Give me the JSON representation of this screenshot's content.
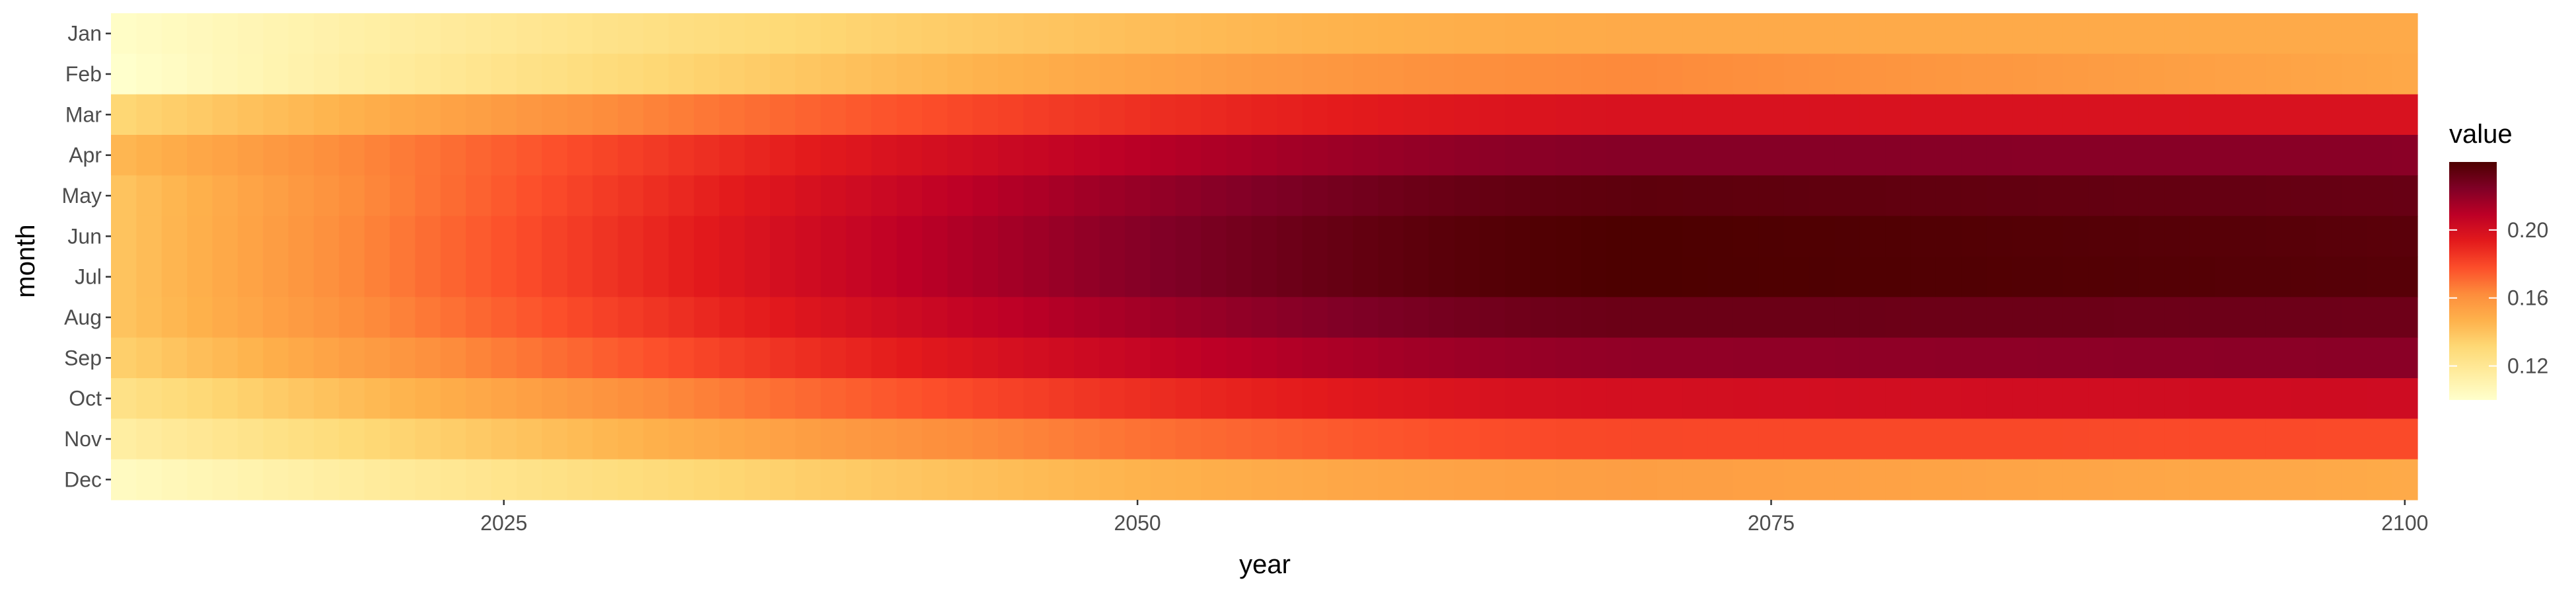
{
  "chart_data": {
    "type": "heatmap",
    "title": "",
    "xlabel": "year",
    "ylabel": "month",
    "x_start": 2010,
    "x_end": 2100,
    "x_ticks": [
      2025,
      2050,
      2075,
      2100
    ],
    "x_tick_labels": [
      "2025",
      "2050",
      "2075",
      "2100"
    ],
    "months": [
      "Jan",
      "Feb",
      "Mar",
      "Apr",
      "May",
      "Jun",
      "Jul",
      "Aug",
      "Sep",
      "Oct",
      "Nov",
      "Dec"
    ],
    "peak_year": 2070,
    "month_peak_values": [
      0.15,
      0.163,
      0.198,
      0.223,
      0.235,
      0.24,
      0.24,
      0.231,
      0.22,
      0.2,
      0.18,
      0.155
    ],
    "month_start_values": [
      0.102,
      0.1,
      0.132,
      0.145,
      0.14,
      0.14,
      0.14,
      0.14,
      0.135,
      0.125,
      0.115,
      0.104
    ],
    "month_end_values": [
      0.15,
      0.151,
      0.198,
      0.222,
      0.232,
      0.236,
      0.237,
      0.23,
      0.222,
      0.202,
      0.179,
      0.15
    ],
    "legend": {
      "title": "value",
      "position": "right",
      "ticks": [
        0.12,
        0.16,
        0.2
      ],
      "tick_labels": [
        "0.12",
        "0.16",
        "0.20"
      ],
      "min": 0.1,
      "max": 0.24
    },
    "colors": [
      "#ffffcc",
      "#ffeda0",
      "#fed976",
      "#feb24c",
      "#fd8d3c",
      "#fc4e2a",
      "#e31a1c",
      "#bd0026",
      "#800026",
      "#4d0000"
    ],
    "grid": false
  }
}
